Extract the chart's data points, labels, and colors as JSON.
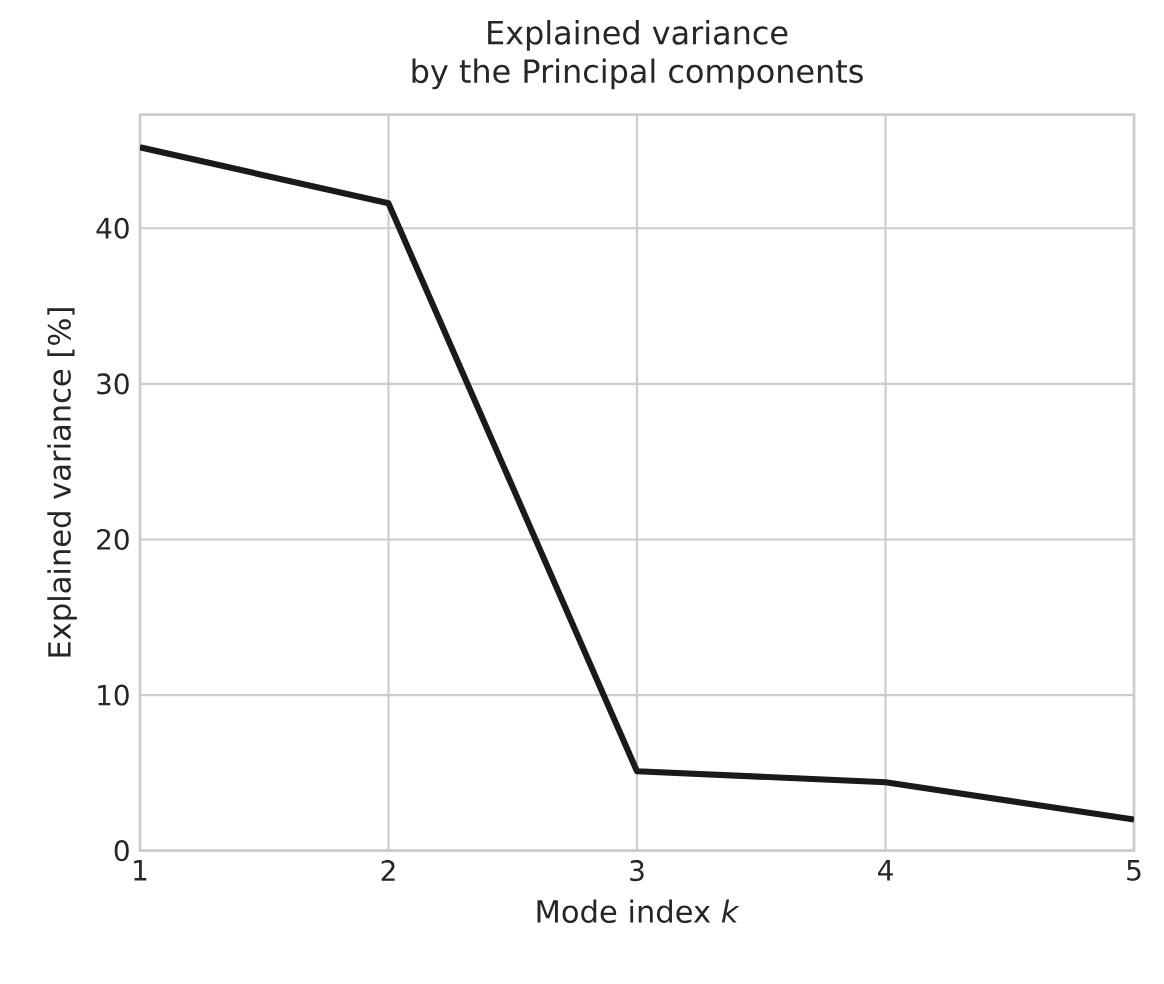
{
  "chart_data": {
    "type": "line",
    "title": "Explained variance\nby the Principal components",
    "xlabel": "Mode index *k*",
    "ylabel": "Explained variance [%]",
    "x": [
      1,
      2,
      3,
      4,
      5
    ],
    "series": [
      {
        "color": "#1a1a1a",
        "values": [
          45.2,
          41.6,
          5.1,
          4.4,
          2.0
        ]
      }
    ],
    "xlim": [
      1,
      5
    ],
    "xticks": [
      1,
      2,
      3,
      4,
      5
    ],
    "ylim": [
      0,
      47.3
    ],
    "yticks": [
      0,
      10,
      20,
      30,
      40
    ],
    "grid": true,
    "line_style": "solid",
    "marker": "none"
  }
}
